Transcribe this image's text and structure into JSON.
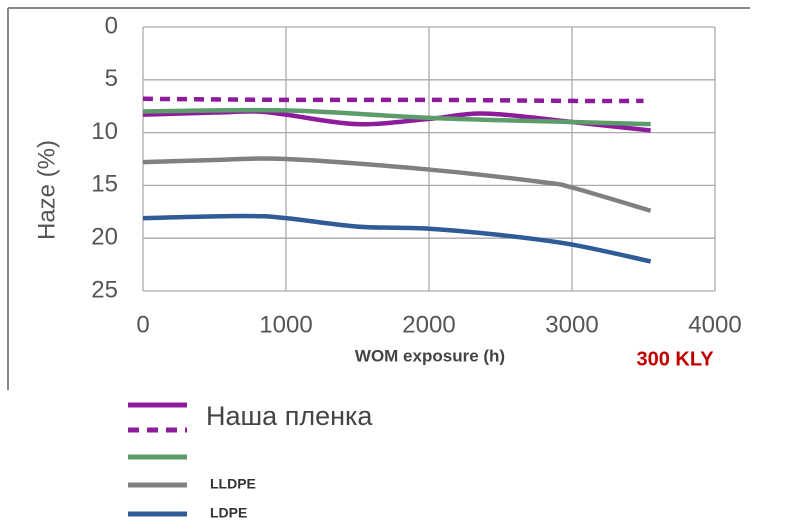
{
  "chart_data": {
    "type": "line",
    "y_label": "Haze (%)",
    "x_label": "WOM exposure (h)",
    "annotation": "300 KLY",
    "xlim": [
      0,
      4000
    ],
    "xticks": [
      0,
      1000,
      2000,
      3000,
      4000
    ],
    "ylim": [
      0,
      25
    ],
    "yticks": [
      0,
      5,
      10,
      15,
      20,
      25
    ],
    "y_reversed": true,
    "grid": true,
    "series": [
      {
        "name": "Наша пленка",
        "color": "#8e1b9c",
        "dashed": false,
        "x": [
          0,
          500,
          800,
          1000,
          1500,
          2000,
          2400,
          3000,
          3550
        ],
        "values": [
          8.3,
          8.1,
          8.0,
          8.3,
          9.2,
          8.7,
          8.2,
          9.0,
          9.8
        ]
      },
      {
        "color": "#8e1b9c",
        "dashed": true,
        "x": [
          0,
          1000,
          2000,
          3000,
          3500
        ],
        "values": [
          6.8,
          6.9,
          6.9,
          7.0,
          7.0
        ]
      },
      {
        "color": "#5c9c6a",
        "dashed": false,
        "x": [
          0,
          1000,
          2000,
          3000,
          3550
        ],
        "values": [
          8.0,
          7.9,
          8.6,
          9.0,
          9.2
        ]
      },
      {
        "name": "LLDPE",
        "color": "#808080",
        "dashed": false,
        "x": [
          0,
          500,
          1000,
          2000,
          2800,
          3000,
          3550
        ],
        "values": [
          12.8,
          12.6,
          12.5,
          13.5,
          14.7,
          15.2,
          17.4
        ]
      },
      {
        "name": "LDPE",
        "color": "#2f5b96",
        "dashed": false,
        "x": [
          0,
          700,
          1000,
          1500,
          2000,
          2500,
          3000,
          3550
        ],
        "values": [
          18.1,
          17.9,
          18.1,
          18.9,
          19.1,
          19.7,
          20.6,
          22.2
        ]
      }
    ]
  }
}
